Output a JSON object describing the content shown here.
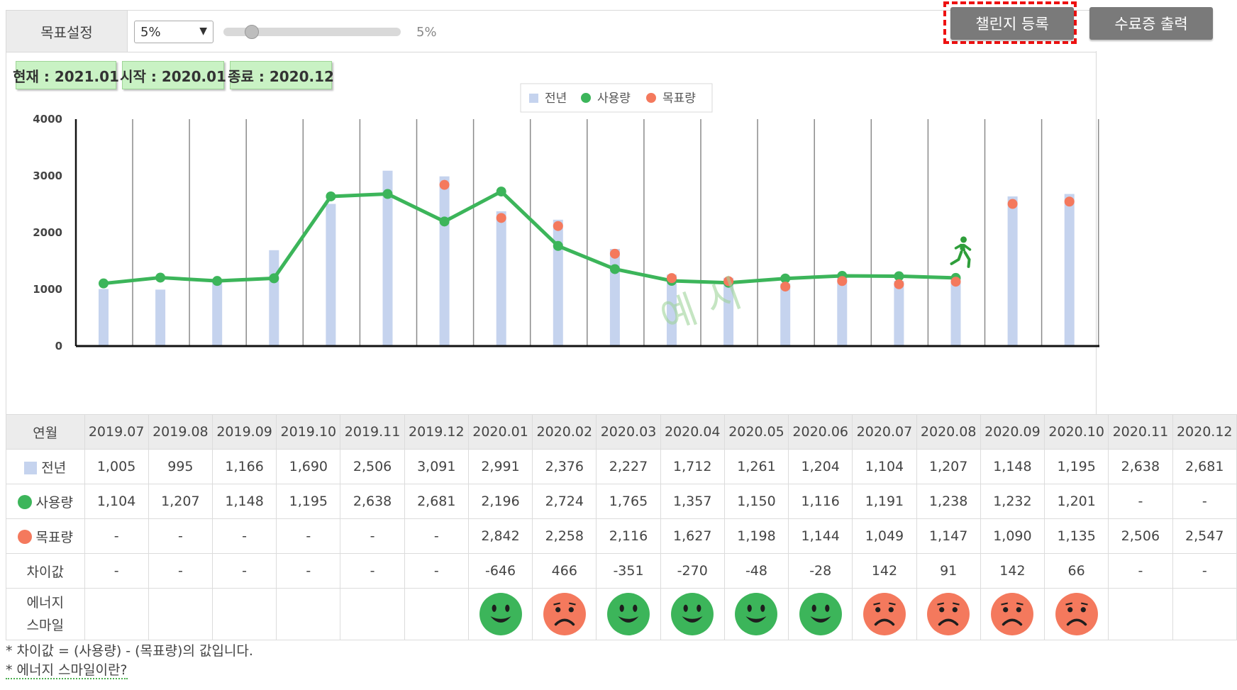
{
  "controls": {
    "target_label": "목표설정",
    "target_select_value": "5%",
    "slider_value_text": "5%",
    "slider_fraction": 0.12,
    "challenge_button": "챌린지 등록",
    "certificate_button": "수료증 출력"
  },
  "chips": {
    "current": "현재 : 2021.01",
    "start": "시작 : 2020.01",
    "end": "종료 : 2020.12"
  },
  "watermark": "예 시",
  "colors": {
    "prev_year": "#c5d3ee",
    "usage": "#3cb55a",
    "target": "#f4795d",
    "good_face": "#3cb55a",
    "bad_face": "#f4795d"
  },
  "chart_data": {
    "type": "bar",
    "title": "",
    "legend_position": "top-center",
    "ylim": [
      0,
      4000
    ],
    "yticks": [
      0,
      1000,
      2000,
      3000,
      4000
    ],
    "grid_vertical": true,
    "categories": [
      "2019.07",
      "2019.08",
      "2019.09",
      "2019.10",
      "2019.11",
      "2019.12",
      "2020.01",
      "2020.02",
      "2020.03",
      "2020.04",
      "2020.05",
      "2020.06",
      "2020.07",
      "2020.08",
      "2020.09",
      "2020.10",
      "2020.11",
      "2020.12"
    ],
    "series": [
      {
        "name": "전년",
        "kind": "bar",
        "values": [
          1005,
          995,
          1166,
          1690,
          2506,
          3091,
          2991,
          2376,
          2227,
          1712,
          1261,
          1204,
          1104,
          1207,
          1148,
          1195,
          2638,
          2681
        ]
      },
      {
        "name": "사용량",
        "kind": "line",
        "values": [
          1104,
          1207,
          1148,
          1195,
          2638,
          2681,
          2196,
          2724,
          1765,
          1357,
          1150,
          1116,
          1191,
          1238,
          1232,
          1201,
          null,
          null
        ]
      },
      {
        "name": "목표량",
        "kind": "dot",
        "values": [
          null,
          null,
          null,
          null,
          null,
          null,
          2842,
          2258,
          2116,
          1627,
          1198,
          1144,
          1049,
          1147,
          1090,
          1135,
          2506,
          2547
        ]
      }
    ],
    "current_marker_category": "2020.10"
  },
  "table": {
    "header_label": "연월",
    "prev_label": "전년",
    "usage_label": "사용량",
    "target_label": "목표량",
    "diff_label": "차이값",
    "smile_label_line1": "에너지",
    "smile_label_line2": "스마일",
    "prev": [
      "1,005",
      "995",
      "1,166",
      "1,690",
      "2,506",
      "3,091",
      "2,991",
      "2,376",
      "2,227",
      "1,712",
      "1,261",
      "1,204",
      "1,104",
      "1,207",
      "1,148",
      "1,195",
      "2,638",
      "2,681"
    ],
    "usage": [
      "1,104",
      "1,207",
      "1,148",
      "1,195",
      "2,638",
      "2,681",
      "2,196",
      "2,724",
      "1,765",
      "1,357",
      "1,150",
      "1,116",
      "1,191",
      "1,238",
      "1,232",
      "1,201",
      "-",
      "-"
    ],
    "target": [
      "-",
      "-",
      "-",
      "-",
      "-",
      "-",
      "2,842",
      "2,258",
      "2,116",
      "1,627",
      "1,198",
      "1,144",
      "1,049",
      "1,147",
      "1,090",
      "1,135",
      "2,506",
      "2,547"
    ],
    "diff": [
      "-",
      "-",
      "-",
      "-",
      "-",
      "-",
      "-646",
      "466",
      "-351",
      "-270",
      "-48",
      "-28",
      "142",
      "91",
      "142",
      "66",
      "-",
      "-"
    ],
    "smiles": [
      "",
      "",
      "",
      "",
      "",
      "",
      "good",
      "bad",
      "good",
      "good",
      "good",
      "good",
      "bad",
      "bad",
      "bad",
      "bad",
      "",
      ""
    ]
  },
  "notes": {
    "line1": "* 차이값 = (사용량) - (목표량)의 값입니다.",
    "line2": "* 에너지 스마일이란?"
  }
}
